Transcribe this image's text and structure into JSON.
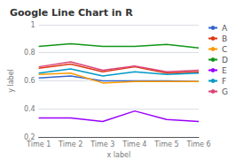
{
  "chart_data": {
    "type": "line",
    "title": "Google Line Chart in R",
    "xlabel": "x label",
    "ylabel": "y label",
    "categories": [
      "Time 1",
      "Time 2",
      "Time 3",
      "Time 4",
      "Time 5",
      "Time 6"
    ],
    "series": [
      {
        "name": "A",
        "color": "#3366cc",
        "values": [
          0.62,
          0.635,
          0.6,
          0.6,
          0.6,
          0.595
        ]
      },
      {
        "name": "B",
        "color": "#dc3912",
        "values": [
          0.69,
          0.72,
          0.665,
          0.7,
          0.655,
          0.665
        ]
      },
      {
        "name": "C",
        "color": "#ff9900",
        "values": [
          0.645,
          0.655,
          0.585,
          0.595,
          0.595,
          0.595
        ]
      },
      {
        "name": "D",
        "color": "#109618",
        "values": [
          0.845,
          0.865,
          0.845,
          0.845,
          0.86,
          0.835
        ]
      },
      {
        "name": "E",
        "color": "#9900ff",
        "values": [
          0.335,
          0.335,
          0.31,
          0.385,
          0.325,
          0.31
        ]
      },
      {
        "name": "F",
        "color": "#0099c6",
        "values": [
          0.655,
          0.685,
          0.635,
          0.665,
          0.645,
          0.655
        ]
      },
      {
        "name": "G",
        "color": "#dd4477",
        "values": [
          0.7,
          0.735,
          0.675,
          0.705,
          0.665,
          0.675
        ]
      }
    ],
    "ylim": [
      0.2,
      1.0
    ],
    "yticks": [
      0.2,
      0.4,
      0.6,
      0.8,
      1
    ],
    "grid": true,
    "legend": "right"
  }
}
